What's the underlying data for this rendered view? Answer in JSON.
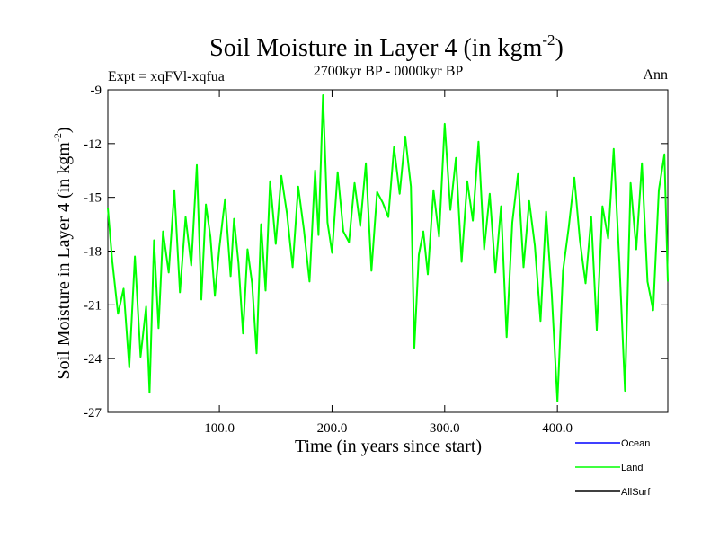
{
  "chart_data": {
    "type": "line",
    "title": "Soil Moisture in Layer 4 (in kgm",
    "title_sup": "-2",
    "title_close": ")",
    "subtitle_left": "Expt = xqFVl-xqfua",
    "subtitle_center": "2700kyr BP - 0000kyr BP",
    "subtitle_right": "Ann",
    "xlabel": "Time (in years since start)",
    "ylabel": "Soil Moisture in Layer 4 (in kgm",
    "ylabel_sup": "-2",
    "ylabel_close": ")",
    "xlim": [
      1,
      498
    ],
    "ylim": [
      -27,
      -9
    ],
    "xticks": [
      100,
      200,
      300,
      400
    ],
    "xtick_labels": [
      "100.0",
      "200.0",
      "300.0",
      "400.0"
    ],
    "yticks": [
      -27,
      -24,
      -21,
      -18,
      -15,
      -12,
      -9
    ],
    "ytick_labels": [
      "-27",
      "-24",
      "-21",
      "-18",
      "-15",
      "-12",
      "-9"
    ],
    "grid": false,
    "legend": [
      {
        "name": "Ocean",
        "color": "#0000ff"
      },
      {
        "name": "Land",
        "color": "#00ff00"
      },
      {
        "name": "AllSurf",
        "color": "#000000"
      }
    ],
    "series": [
      {
        "name": "Land",
        "color": "#00ff00",
        "x": [
          1,
          5,
          10,
          15,
          20,
          25,
          30,
          35,
          38,
          42,
          46,
          50,
          55,
          60,
          65,
          70,
          75,
          80,
          84,
          88,
          92,
          96,
          100,
          105,
          110,
          113,
          117,
          121,
          125,
          129,
          133,
          137,
          141,
          145,
          150,
          155,
          160,
          165,
          170,
          175,
          180,
          185,
          188,
          192,
          196,
          200,
          205,
          210,
          215,
          220,
          225,
          230,
          235,
          240,
          245,
          250,
          255,
          260,
          265,
          270,
          273,
          277,
          281,
          285,
          290,
          295,
          300,
          305,
          310,
          315,
          320,
          325,
          330,
          335,
          340,
          345,
          350,
          355,
          360,
          365,
          370,
          375,
          380,
          385,
          390,
          395,
          400,
          405,
          410,
          415,
          420,
          425,
          430,
          435,
          440,
          445,
          450,
          455,
          460,
          465,
          470,
          475,
          480,
          485,
          490,
          495,
          498
        ],
        "values": [
          -15.6,
          -18.6,
          -21.5,
          -20.1,
          -24.5,
          -18.3,
          -23.9,
          -21.1,
          -25.9,
          -17.4,
          -22.3,
          -16.9,
          -19.2,
          -14.6,
          -20.3,
          -16.1,
          -18.8,
          -13.2,
          -20.7,
          -15.4,
          -17.2,
          -20.5,
          -17.8,
          -15.1,
          -19.4,
          -16.2,
          -18.7,
          -22.6,
          -17.9,
          -19.8,
          -23.7,
          -16.5,
          -20.2,
          -14.1,
          -17.6,
          -13.8,
          -15.9,
          -18.9,
          -14.4,
          -16.8,
          -19.7,
          -13.5,
          -17.1,
          -9.3,
          -16.4,
          -18.1,
          -13.6,
          -16.9,
          -17.5,
          -14.2,
          -16.6,
          -13.1,
          -19.1,
          -14.7,
          -15.3,
          -16.1,
          -12.2,
          -14.8,
          -11.6,
          -14.4,
          -23.4,
          -18.2,
          -16.9,
          -19.3,
          -14.6,
          -17.2,
          -10.9,
          -15.7,
          -12.8,
          -18.6,
          -14.1,
          -16.3,
          -11.9,
          -17.9,
          -14.8,
          -19.2,
          -15.5,
          -22.8,
          -16.4,
          -13.7,
          -18.9,
          -15.2,
          -17.7,
          -21.9,
          -15.8,
          -20.4,
          -26.4,
          -19.1,
          -16.7,
          -13.9,
          -17.4,
          -19.8,
          -16.1,
          -22.4,
          -15.5,
          -17.3,
          -12.3,
          -18.6,
          -25.8,
          -14.2,
          -17.9,
          -13.1,
          -19.7,
          -21.3,
          -14.6,
          -12.6,
          -19.7
        ]
      }
    ]
  }
}
